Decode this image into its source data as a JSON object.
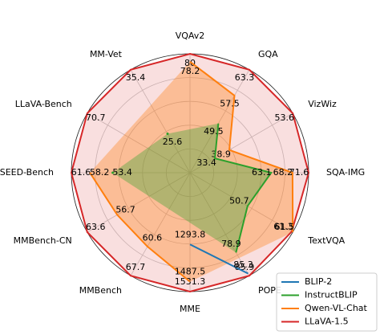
{
  "chart_data": {
    "type": "radar",
    "categories": [
      "VQAv2",
      "GQA",
      "VizWiz",
      "SQA-IMG",
      "TextVQA",
      "POPE",
      "MME",
      "MMBench",
      "MMBench-CN",
      "SEED-Bench",
      "LLaVA-Bench",
      "MM-Vet"
    ],
    "series": [
      {
        "name": "BLIP-2",
        "color": "#1f77b4",
        "values": [
          null,
          null,
          null,
          null,
          null,
          85.3,
          1293.8,
          null,
          null,
          null,
          null,
          null
        ]
      },
      {
        "name": "InstructBLIP",
        "color": "#2ca02c",
        "values": [
          null,
          49.5,
          33.4,
          63.1,
          50.7,
          78.9,
          null,
          null,
          null,
          53.4,
          null,
          25.6
        ]
      },
      {
        "name": "Qwen-VL-Chat",
        "color": "#ff7f0e",
        "values": [
          78.2,
          57.5,
          38.9,
          68.2,
          61.5,
          null,
          1487.5,
          60.6,
          56.7,
          58.2,
          null,
          null
        ]
      },
      {
        "name": "LLaVA-1.5",
        "color": "#d62728",
        "values": [
          80.0,
          63.3,
          53.6,
          71.6,
          61.3,
          85.9,
          1531.3,
          67.7,
          63.6,
          61.6,
          70.7,
          35.4
        ]
      }
    ],
    "grid": true,
    "legend": "lower right"
  }
}
